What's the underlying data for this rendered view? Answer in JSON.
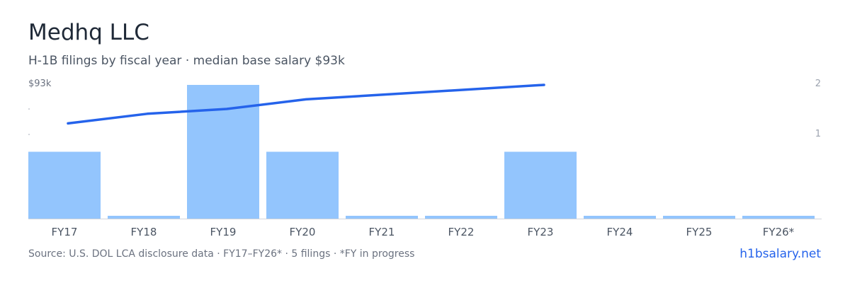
{
  "header": {
    "title": "Medhq LLC",
    "subtitle": "H-1B filings by fiscal year · median base salary $93k"
  },
  "footer": {
    "source": "Source: U.S. DOL LCA disclosure data · FY17–FY26* · 5 filings · *FY in progress",
    "brand": "h1bsalary.net"
  },
  "colors": {
    "bar": "#93c5fd",
    "line": "#2563eb",
    "axis": "#d1d5db",
    "tick_text": "#4b5563",
    "brand": "#2563eb"
  },
  "chart_data": {
    "type": "bar",
    "categories": [
      "FY17",
      "FY18",
      "FY19",
      "FY20",
      "FY21",
      "FY22",
      "FY23",
      "FY24",
      "FY25",
      "FY26*"
    ],
    "series": [
      {
        "type": "bar",
        "axis": "right",
        "values": [
          1,
          0,
          2,
          1,
          0,
          0,
          1,
          0,
          0,
          0
        ]
      },
      {
        "type": "line",
        "axis": "left",
        "values": [
          85,
          87,
          88,
          90,
          null,
          null,
          93,
          null,
          null,
          null
        ]
      }
    ],
    "left_axis": {
      "top_label": "$93k"
    },
    "right_axis": {
      "ylim": [
        0,
        2
      ],
      "ticks": [
        "1",
        "2"
      ]
    },
    "grid": false
  }
}
